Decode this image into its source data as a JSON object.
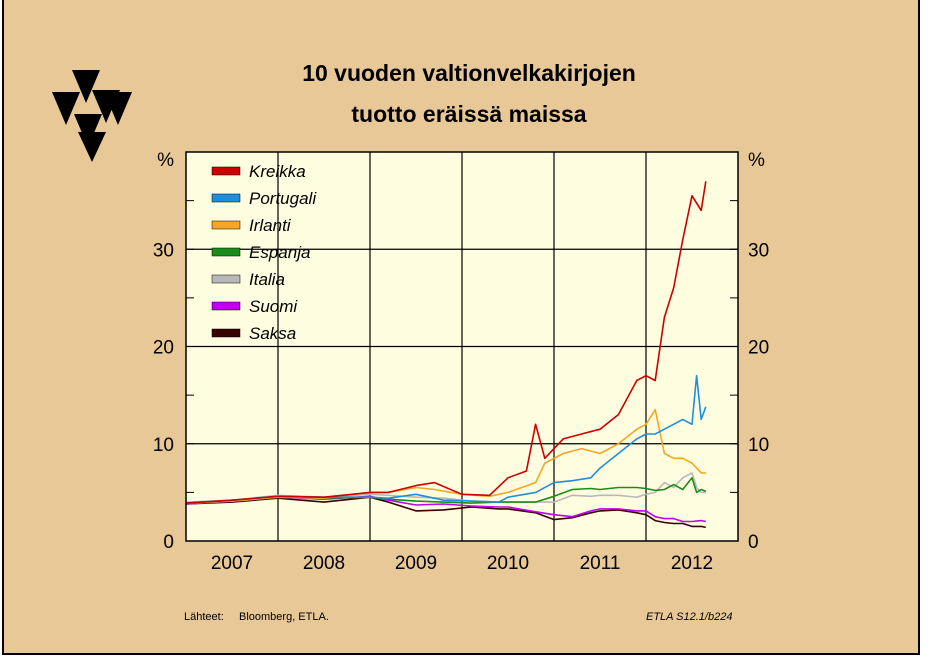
{
  "header": {
    "title_line1": "10 vuoden valtionvelkakirjojen",
    "title_line2": "tuotto eräissä maissa"
  },
  "footer": {
    "sources_label": "Lähteet:",
    "sources_text": "Bloomberg, ETLA.",
    "chart_code": "ETLA S12.1/b224"
  },
  "icons": {
    "logo": "etla-triangles-logo"
  },
  "colors": {
    "background": "#e8c897",
    "plot_area": "#fffde0"
  },
  "chart_data": {
    "type": "line",
    "title": "10 vuoden valtionvelkakirjojen tuotto eräissä maissa",
    "ylabel_left": "%",
    "ylabel_right": "%",
    "xlim": [
      2006.5,
      2012.5
    ],
    "ylim": [
      0,
      40
    ],
    "yticks": [
      0,
      10,
      20,
      30
    ],
    "xtick_labels": [
      "2007",
      "2008",
      "2009",
      "2010",
      "2011",
      "2012"
    ],
    "grid": true,
    "legend_position": "top-left",
    "series": [
      {
        "name": "Kreikka",
        "color": "#cc0000",
        "points": [
          [
            2006.5,
            3.9
          ],
          [
            2007.0,
            4.2
          ],
          [
            2007.5,
            4.6
          ],
          [
            2008.0,
            4.5
          ],
          [
            2008.5,
            5.0
          ],
          [
            2008.7,
            5.0
          ],
          [
            2009.0,
            5.7
          ],
          [
            2009.2,
            6.0
          ],
          [
            2009.5,
            4.8
          ],
          [
            2009.8,
            4.7
          ],
          [
            2010.0,
            6.5
          ],
          [
            2010.2,
            7.2
          ],
          [
            2010.3,
            12.0
          ],
          [
            2010.4,
            8.5
          ],
          [
            2010.6,
            10.5
          ],
          [
            2010.8,
            11.0
          ],
          [
            2011.0,
            11.5
          ],
          [
            2011.2,
            13.0
          ],
          [
            2011.4,
            16.5
          ],
          [
            2011.5,
            17.0
          ],
          [
            2011.6,
            16.5
          ],
          [
            2011.7,
            23.0
          ],
          [
            2011.8,
            26.0
          ],
          [
            2011.9,
            31.0
          ],
          [
            2012.0,
            35.5
          ],
          [
            2012.1,
            34.0
          ],
          [
            2012.15,
            37.0
          ]
        ]
      },
      {
        "name": "Portugali",
        "color": "#1e8fe0",
        "points": [
          [
            2006.5,
            3.9
          ],
          [
            2007.0,
            4.2
          ],
          [
            2007.5,
            4.6
          ],
          [
            2008.0,
            4.5
          ],
          [
            2008.5,
            4.5
          ],
          [
            2008.7,
            4.4
          ],
          [
            2009.0,
            4.8
          ],
          [
            2009.3,
            4.2
          ],
          [
            2009.6,
            4.1
          ],
          [
            2009.9,
            4.0
          ],
          [
            2010.0,
            4.5
          ],
          [
            2010.3,
            5.0
          ],
          [
            2010.5,
            6.0
          ],
          [
            2010.7,
            6.2
          ],
          [
            2010.9,
            6.5
          ],
          [
            2011.0,
            7.5
          ],
          [
            2011.2,
            9.0
          ],
          [
            2011.4,
            10.5
          ],
          [
            2011.5,
            11.0
          ],
          [
            2011.6,
            11.0
          ],
          [
            2011.7,
            11.5
          ],
          [
            2011.8,
            12.0
          ],
          [
            2011.9,
            12.5
          ],
          [
            2012.0,
            12.0
          ],
          [
            2012.05,
            17.0
          ],
          [
            2012.1,
            12.5
          ],
          [
            2012.15,
            13.8
          ]
        ]
      },
      {
        "name": "Irlanti",
        "color": "#f5a623",
        "points": [
          [
            2006.5,
            3.9
          ],
          [
            2007.0,
            4.1
          ],
          [
            2007.5,
            4.5
          ],
          [
            2008.0,
            4.4
          ],
          [
            2008.5,
            5.0
          ],
          [
            2008.7,
            5.0
          ],
          [
            2009.0,
            5.5
          ],
          [
            2009.2,
            5.3
          ],
          [
            2009.5,
            4.8
          ],
          [
            2009.8,
            4.6
          ],
          [
            2010.0,
            5.0
          ],
          [
            2010.3,
            6.0
          ],
          [
            2010.4,
            8.0
          ],
          [
            2010.6,
            9.0
          ],
          [
            2010.8,
            9.5
          ],
          [
            2011.0,
            9.0
          ],
          [
            2011.2,
            10.0
          ],
          [
            2011.4,
            11.5
          ],
          [
            2011.5,
            12.0
          ],
          [
            2011.6,
            13.5
          ],
          [
            2011.7,
            9.0
          ],
          [
            2011.8,
            8.5
          ],
          [
            2011.9,
            8.5
          ],
          [
            2012.0,
            8.0
          ],
          [
            2012.1,
            7.0
          ],
          [
            2012.15,
            7.0
          ]
        ]
      },
      {
        "name": "Espanja",
        "color": "#1a8c1a",
        "points": [
          [
            2006.5,
            3.9
          ],
          [
            2007.0,
            4.1
          ],
          [
            2007.5,
            4.5
          ],
          [
            2008.0,
            4.4
          ],
          [
            2008.5,
            4.5
          ],
          [
            2008.7,
            4.3
          ],
          [
            2009.0,
            4.1
          ],
          [
            2009.3,
            4.0
          ],
          [
            2009.6,
            3.9
          ],
          [
            2009.9,
            4.0
          ],
          [
            2010.0,
            4.0
          ],
          [
            2010.3,
            4.0
          ],
          [
            2010.5,
            4.6
          ],
          [
            2010.7,
            5.3
          ],
          [
            2010.9,
            5.4
          ],
          [
            2011.0,
            5.3
          ],
          [
            2011.2,
            5.5
          ],
          [
            2011.4,
            5.5
          ],
          [
            2011.5,
            5.4
          ],
          [
            2011.6,
            5.2
          ],
          [
            2011.7,
            5.3
          ],
          [
            2011.8,
            5.8
          ],
          [
            2011.9,
            5.3
          ],
          [
            2012.0,
            6.5
          ],
          [
            2012.05,
            5.0
          ],
          [
            2012.1,
            5.3
          ],
          [
            2012.15,
            5.1
          ]
        ]
      },
      {
        "name": "Italia",
        "color": "#b8b8b8",
        "points": [
          [
            2006.5,
            4.0
          ],
          [
            2007.0,
            4.2
          ],
          [
            2007.5,
            4.7
          ],
          [
            2008.0,
            4.5
          ],
          [
            2008.5,
            4.8
          ],
          [
            2008.7,
            4.7
          ],
          [
            2009.0,
            4.5
          ],
          [
            2009.3,
            4.4
          ],
          [
            2009.6,
            4.1
          ],
          [
            2009.9,
            4.0
          ],
          [
            2010.0,
            4.0
          ],
          [
            2010.3,
            4.0
          ],
          [
            2010.5,
            4.0
          ],
          [
            2010.7,
            4.7
          ],
          [
            2010.9,
            4.6
          ],
          [
            2011.0,
            4.7
          ],
          [
            2011.2,
            4.7
          ],
          [
            2011.4,
            4.5
          ],
          [
            2011.5,
            4.8
          ],
          [
            2011.6,
            5.0
          ],
          [
            2011.7,
            6.0
          ],
          [
            2011.8,
            5.5
          ],
          [
            2011.9,
            6.5
          ],
          [
            2012.0,
            7.0
          ],
          [
            2012.05,
            5.5
          ],
          [
            2012.1,
            5.0
          ],
          [
            2012.15,
            5.0
          ]
        ]
      },
      {
        "name": "Suomi",
        "color": "#c000f0",
        "points": [
          [
            2006.5,
            3.8
          ],
          [
            2007.0,
            4.1
          ],
          [
            2007.5,
            4.5
          ],
          [
            2008.0,
            4.3
          ],
          [
            2008.5,
            4.6
          ],
          [
            2008.7,
            4.2
          ],
          [
            2009.0,
            3.7
          ],
          [
            2009.3,
            3.8
          ],
          [
            2009.6,
            3.6
          ],
          [
            2009.9,
            3.5
          ],
          [
            2010.0,
            3.5
          ],
          [
            2010.3,
            3.0
          ],
          [
            2010.5,
            2.7
          ],
          [
            2010.7,
            2.5
          ],
          [
            2010.9,
            3.1
          ],
          [
            2011.0,
            3.3
          ],
          [
            2011.2,
            3.3
          ],
          [
            2011.4,
            3.1
          ],
          [
            2011.5,
            3.1
          ],
          [
            2011.6,
            2.5
          ],
          [
            2011.7,
            2.3
          ],
          [
            2011.8,
            2.3
          ],
          [
            2011.9,
            2.0
          ],
          [
            2012.0,
            2.0
          ],
          [
            2012.1,
            2.1
          ],
          [
            2012.15,
            2.0
          ]
        ]
      },
      {
        "name": "Saksa",
        "color": "#3a0000",
        "points": [
          [
            2006.5,
            3.8
          ],
          [
            2007.0,
            4.0
          ],
          [
            2007.5,
            4.4
          ],
          [
            2008.0,
            4.0
          ],
          [
            2008.5,
            4.5
          ],
          [
            2008.7,
            4.0
          ],
          [
            2009.0,
            3.1
          ],
          [
            2009.3,
            3.2
          ],
          [
            2009.6,
            3.5
          ],
          [
            2009.9,
            3.3
          ],
          [
            2010.0,
            3.3
          ],
          [
            2010.3,
            2.9
          ],
          [
            2010.5,
            2.2
          ],
          [
            2010.7,
            2.4
          ],
          [
            2010.9,
            2.9
          ],
          [
            2011.0,
            3.1
          ],
          [
            2011.2,
            3.2
          ],
          [
            2011.4,
            2.9
          ],
          [
            2011.5,
            2.7
          ],
          [
            2011.6,
            2.1
          ],
          [
            2011.7,
            1.9
          ],
          [
            2011.8,
            1.8
          ],
          [
            2011.9,
            1.8
          ],
          [
            2012.0,
            1.5
          ],
          [
            2012.1,
            1.5
          ],
          [
            2012.15,
            1.4
          ]
        ]
      }
    ]
  }
}
